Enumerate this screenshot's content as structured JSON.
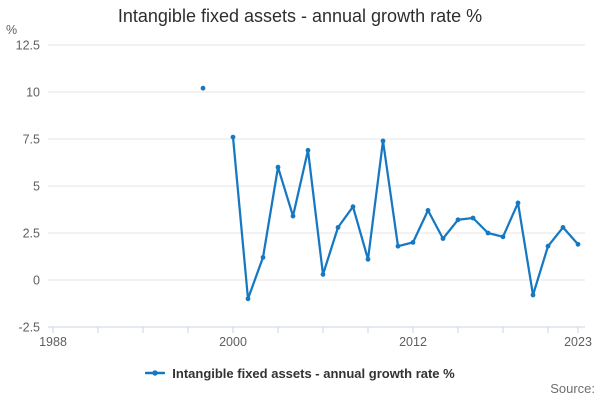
{
  "title": "Intangible fixed assets - annual growth rate %",
  "legend": {
    "label": "Intangible fixed assets - annual growth rate %"
  },
  "footer": {
    "source_label": "Source:"
  },
  "colors": {
    "series": "#1678c2",
    "grid": "#e6e6e6",
    "axis": "#c9d5e1",
    "tick_label": "#5f5f5f",
    "title_text": "#2e2e2e",
    "legend_text": "#333333",
    "source_text": "#6f6f6f"
  },
  "chart_data": {
    "type": "line",
    "title": "Intangible fixed assets - annual growth rate %",
    "xlabel": "",
    "ylabel": "%",
    "ylim": [
      -2.5,
      12.5
    ],
    "xlim": [
      1987.7,
      2023.5
    ],
    "grid": "horizontal-only",
    "legend_position": "bottom-center",
    "y_ticks": [
      -2.5,
      0,
      2.5,
      5,
      7.5,
      10,
      12.5
    ],
    "y_tick_labels": [
      "-2.5",
      "0",
      "2.5",
      "5",
      "7.5",
      "10",
      "12.5"
    ],
    "x_minor_ticks": [
      1988,
      1991,
      1994,
      1997,
      2000,
      2003,
      2006,
      2009,
      2012,
      2015,
      2018,
      2021,
      2023
    ],
    "x_labeled_ticks": [
      {
        "year": 1988,
        "label": "1988"
      },
      {
        "year": 2000,
        "label": "2000"
      },
      {
        "year": 2012,
        "label": "2012"
      },
      {
        "year": 2023,
        "label": "2023"
      }
    ],
    "series": [
      {
        "name": "Intangible fixed assets - annual growth rate %",
        "color": "#1678c2",
        "marker": "circle",
        "note": "1998 is an isolated point; no data for 1999",
        "points": [
          [
            1998,
            10.2
          ],
          [
            2000,
            7.6
          ],
          [
            2001,
            -1.0
          ],
          [
            2002,
            1.2
          ],
          [
            2003,
            6.0
          ],
          [
            2004,
            3.4
          ],
          [
            2005,
            6.9
          ],
          [
            2006,
            0.3
          ],
          [
            2007,
            2.8
          ],
          [
            2008,
            3.9
          ],
          [
            2009,
            1.1
          ],
          [
            2010,
            7.4
          ],
          [
            2011,
            1.8
          ],
          [
            2012,
            2.0
          ],
          [
            2013,
            3.7
          ],
          [
            2014,
            2.2
          ],
          [
            2015,
            3.2
          ],
          [
            2016,
            3.3
          ],
          [
            2017,
            2.5
          ],
          [
            2018,
            2.3
          ],
          [
            2019,
            4.1
          ],
          [
            2020,
            -0.8
          ],
          [
            2021,
            1.8
          ],
          [
            2022,
            2.8
          ],
          [
            2023,
            1.9
          ]
        ]
      }
    ]
  }
}
